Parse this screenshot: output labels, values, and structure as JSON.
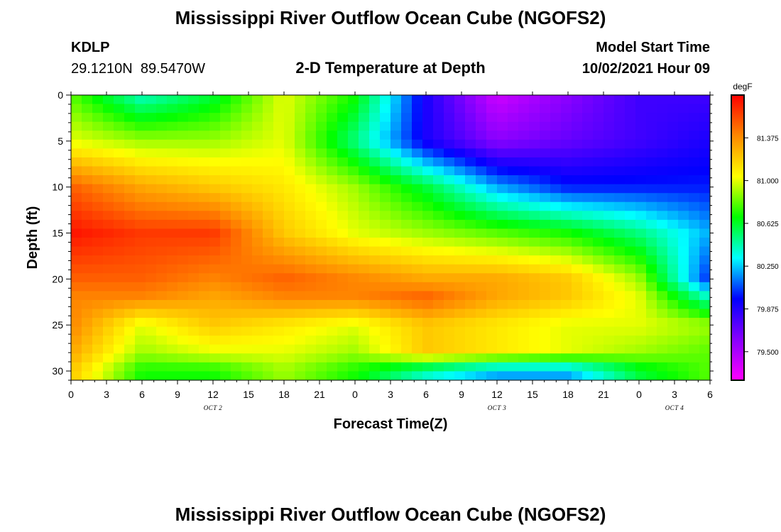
{
  "header": {
    "title": "Mississippi River Outflow Ocean Cube (NGOFS2)",
    "station_id": "KDLP",
    "station_coords": "29.1210N  89.5470W",
    "subtitle": "2-D Temperature at Depth",
    "model_start_label": "Model Start Time",
    "model_start_value": "10/02/2021 Hour 09"
  },
  "footer": {
    "title": "Mississippi River Outflow Ocean Cube (NGOFS2)"
  },
  "chart_data": {
    "type": "heatmap",
    "title": "2-D Temperature at Depth",
    "xlabel": "Forecast Time(Z)",
    "ylabel": "Depth (ft)",
    "x_tick_labels": [
      "0",
      "3",
      "6",
      "9",
      "12",
      "15",
      "18",
      "21",
      "0",
      "3",
      "6",
      "9",
      "12",
      "15",
      "18",
      "21",
      "0",
      "3",
      "6"
    ],
    "date_labels": [
      {
        "label": "OCT 2",
        "at_tick": 4
      },
      {
        "label": "OCT 3",
        "at_tick": 12
      },
      {
        "label": "OCT 4",
        "at_tick": 17
      }
    ],
    "y_ticks": [
      0,
      5,
      10,
      15,
      20,
      25,
      30
    ],
    "ylim": [
      0,
      31
    ],
    "y_inverted": true,
    "colorbar": {
      "unit": "degF",
      "min": 79.25,
      "max": 81.75,
      "tick_labels": [
        "81.375",
        "81.000",
        "80.625",
        "80.250",
        "79.875",
        "79.500"
      ],
      "tick_values": [
        81.375,
        81.0,
        80.625,
        80.25,
        79.875,
        79.5
      ],
      "colors": [
        "#ff00ff",
        "#8800ff",
        "#0000ff",
        "#00ffff",
        "#00ff00",
        "#ffff00",
        "#ff8800",
        "#ff0000"
      ]
    },
    "depths_ft": [
      0,
      5,
      10,
      15,
      20,
      22,
      25,
      28,
      30
    ],
    "times_h": [
      0,
      6,
      12,
      18,
      24,
      30,
      36,
      42,
      48,
      54
    ],
    "temperature_degF": [
      [
        80.8,
        80.4,
        80.6,
        81.0,
        80.7,
        79.9,
        79.4,
        79.6,
        79.8,
        79.8
      ],
      [
        81.0,
        80.9,
        80.9,
        81.0,
        80.5,
        79.9,
        79.6,
        79.7,
        79.8,
        79.9
      ],
      [
        81.5,
        81.3,
        81.2,
        81.1,
        80.9,
        80.6,
        80.2,
        80.0,
        80.0,
        80.0
      ],
      [
        81.7,
        81.6,
        81.6,
        81.2,
        81.0,
        80.9,
        80.8,
        80.7,
        80.5,
        80.2
      ],
      [
        81.5,
        81.5,
        81.4,
        81.5,
        81.4,
        81.3,
        81.3,
        81.2,
        80.9,
        80.0
      ],
      [
        81.4,
        81.4,
        81.3,
        81.4,
        81.4,
        81.5,
        81.3,
        81.2,
        81.0,
        80.4
      ],
      [
        81.4,
        81.0,
        81.2,
        81.1,
        81.0,
        81.2,
        81.1,
        81.0,
        81.0,
        80.9
      ],
      [
        81.3,
        80.9,
        81.0,
        81.0,
        80.9,
        81.2,
        81.1,
        81.0,
        80.9,
        80.8
      ],
      [
        81.2,
        80.7,
        80.7,
        80.9,
        80.7,
        80.4,
        80.2,
        80.2,
        80.6,
        80.8
      ]
    ]
  }
}
